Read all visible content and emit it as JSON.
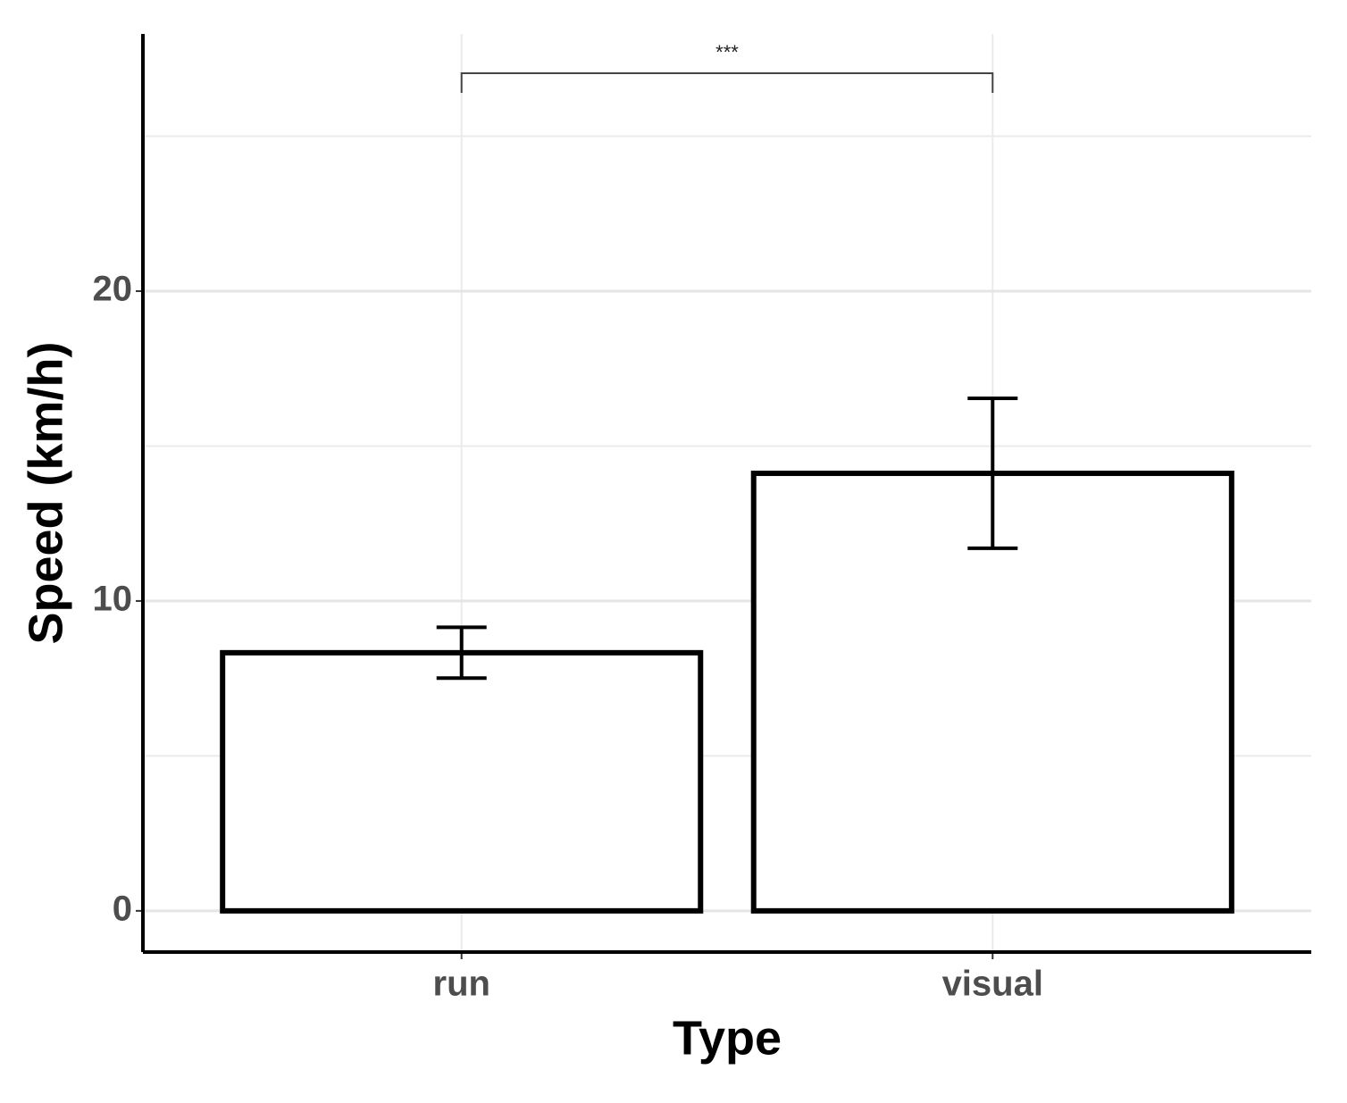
{
  "chart_data": {
    "type": "bar",
    "x_label": "Type",
    "y_label": "Speed (km/h)",
    "categories": [
      "run",
      "visual"
    ],
    "values": [
      8.33,
      14.12
    ],
    "errors": [
      0.82,
      2.42
    ],
    "color": "#ffffff",
    "ylim": [
      -1.33,
      28.3
    ],
    "yticks": [
      0,
      10,
      20
    ],
    "grid": true,
    "annotation": "***"
  }
}
